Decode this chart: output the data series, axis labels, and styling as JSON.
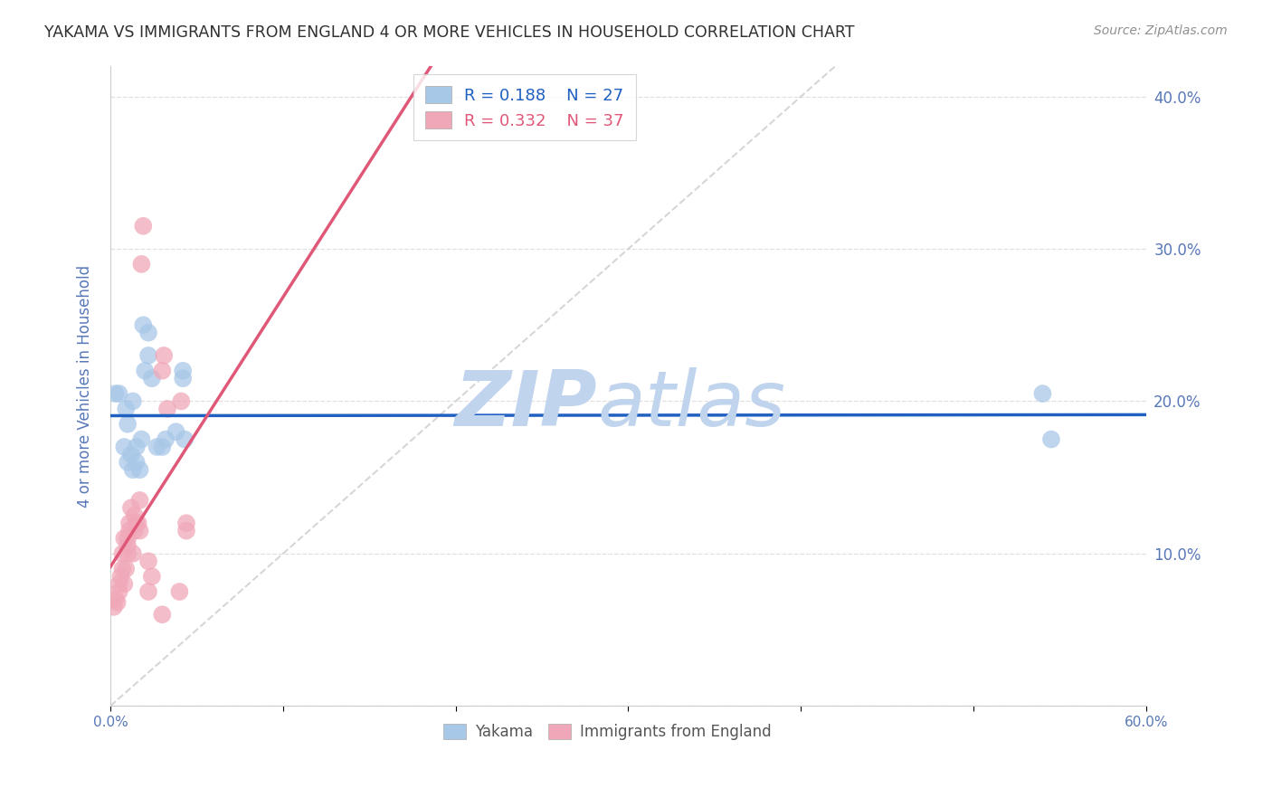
{
  "title": "YAKAMA VS IMMIGRANTS FROM ENGLAND 4 OR MORE VEHICLES IN HOUSEHOLD CORRELATION CHART",
  "source": "Source: ZipAtlas.com",
  "ylabel": "4 or more Vehicles in Household",
  "xmin": 0.0,
  "xmax": 0.6,
  "ymin": 0.0,
  "ymax": 0.42,
  "xtick_positions": [
    0.0,
    0.1,
    0.2,
    0.3,
    0.4,
    0.5,
    0.6
  ],
  "ytick_positions": [
    0.0,
    0.1,
    0.2,
    0.3,
    0.4
  ],
  "ytick_labels_right": [
    "",
    "10.0%",
    "20.0%",
    "30.0%",
    "40.0%"
  ],
  "legend1_label": "Yakama",
  "legend2_label": "Immigrants from England",
  "blue_r": "0.188",
  "blue_n": "27",
  "pink_r": "0.332",
  "pink_n": "37",
  "blue_color": "#a8c8e8",
  "pink_color": "#f0a8b8",
  "blue_line_color": "#2060c0",
  "pink_line_color": "#e05878",
  "diagonal_color": "#cccccc",
  "title_color": "#303030",
  "source_color": "#909090",
  "axis_label_color": "#5878b8",
  "tick_color": "#5878b8",
  "grid_color": "#e0e0e0",
  "blue_scatter": [
    [
      0.003,
      0.205
    ],
    [
      0.005,
      0.205
    ],
    [
      0.008,
      0.17
    ],
    [
      0.009,
      0.195
    ],
    [
      0.01,
      0.16
    ],
    [
      0.01,
      0.185
    ],
    [
      0.012,
      0.165
    ],
    [
      0.013,
      0.155
    ],
    [
      0.013,
      0.2
    ],
    [
      0.015,
      0.16
    ],
    [
      0.015,
      0.17
    ],
    [
      0.017,
      0.155
    ],
    [
      0.018,
      0.175
    ],
    [
      0.019,
      0.25
    ],
    [
      0.02,
      0.22
    ],
    [
      0.022,
      0.23
    ],
    [
      0.022,
      0.245
    ],
    [
      0.024,
      0.215
    ],
    [
      0.027,
      0.17
    ],
    [
      0.03,
      0.17
    ],
    [
      0.032,
      0.175
    ],
    [
      0.038,
      0.18
    ],
    [
      0.042,
      0.215
    ],
    [
      0.042,
      0.22
    ],
    [
      0.043,
      0.175
    ],
    [
      0.54,
      0.205
    ],
    [
      0.545,
      0.175
    ]
  ],
  "pink_scatter": [
    [
      0.002,
      0.065
    ],
    [
      0.003,
      0.07
    ],
    [
      0.004,
      0.068
    ],
    [
      0.005,
      0.075
    ],
    [
      0.005,
      0.08
    ],
    [
      0.006,
      0.085
    ],
    [
      0.007,
      0.09
    ],
    [
      0.007,
      0.1
    ],
    [
      0.008,
      0.08
    ],
    [
      0.008,
      0.11
    ],
    [
      0.009,
      0.09
    ],
    [
      0.01,
      0.1
    ],
    [
      0.01,
      0.105
    ],
    [
      0.01,
      0.11
    ],
    [
      0.011,
      0.115
    ],
    [
      0.011,
      0.12
    ],
    [
      0.012,
      0.13
    ],
    [
      0.013,
      0.1
    ],
    [
      0.014,
      0.115
    ],
    [
      0.014,
      0.125
    ],
    [
      0.015,
      0.12
    ],
    [
      0.016,
      0.12
    ],
    [
      0.017,
      0.115
    ],
    [
      0.017,
      0.135
    ],
    [
      0.018,
      0.29
    ],
    [
      0.019,
      0.315
    ],
    [
      0.022,
      0.075
    ],
    [
      0.022,
      0.095
    ],
    [
      0.024,
      0.085
    ],
    [
      0.03,
      0.06
    ],
    [
      0.03,
      0.22
    ],
    [
      0.031,
      0.23
    ],
    [
      0.033,
      0.195
    ],
    [
      0.04,
      0.075
    ],
    [
      0.041,
      0.2
    ],
    [
      0.044,
      0.115
    ],
    [
      0.044,
      0.12
    ]
  ],
  "watermark_zip": "ZIP",
  "watermark_atlas": "atlas",
  "watermark_color": "#c0d4ee"
}
